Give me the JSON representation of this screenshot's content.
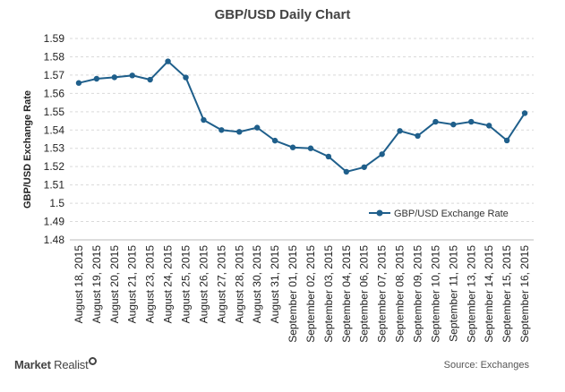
{
  "chart_data": {
    "type": "line",
    "title": "GBP/USD Daily Chart",
    "ylabel": "GBP/USD Exchange Rate",
    "xlabel": "",
    "ylim": [
      1.48,
      1.59
    ],
    "yticks": [
      "1.59",
      "1.58",
      "1.57",
      "1.56",
      "1.55",
      "1.54",
      "1.53",
      "1.52",
      "1.51",
      "1.5",
      "1.49",
      "1.48"
    ],
    "categories": [
      "August 18, 2015",
      "August 19, 2015",
      "August 20, 2015",
      "August 21, 2015",
      "August 23, 2015",
      "August 24, 2015",
      "August 25, 2015",
      "August 26, 2015",
      "August 27, 2015",
      "August 28, 2015",
      "August 30, 2015",
      "August 31, 2015",
      "September 01, 2015",
      "September 02, 2015",
      "September 03, 2015",
      "September 04, 2015",
      "September 06, 2015",
      "September 07, 2015",
      "September 08, 2015",
      "September 09, 2015",
      "September 10, 2015",
      "September 11, 2015",
      "September 13, 2015",
      "September 14, 2015",
      "September 15, 2015",
      "September 16, 2015"
    ],
    "series": [
      {
        "name": "GBP/USD Exchange Rate",
        "color": "#1f5f8b",
        "values": [
          1.5657,
          1.568,
          1.5688,
          1.5698,
          1.5675,
          1.5775,
          1.5687,
          1.5455,
          1.54,
          1.539,
          1.5413,
          1.5342,
          1.5305,
          1.53,
          1.5255,
          1.5172,
          1.5197,
          1.5268,
          1.5395,
          1.5368,
          1.5445,
          1.543,
          1.5445,
          1.5424,
          1.5343,
          1.5492
        ]
      }
    ],
    "grid": true,
    "legend_position": "right"
  },
  "branding": {
    "logo_bold": "Market",
    "logo_light": "Realist"
  },
  "source": "Source: Exchanges"
}
